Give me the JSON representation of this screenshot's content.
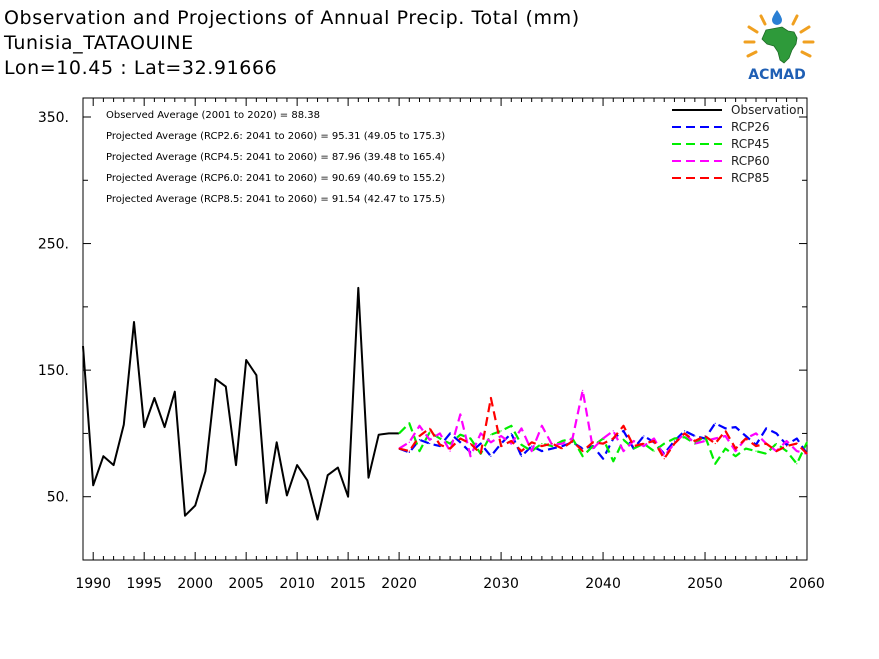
{
  "title": {
    "line1": "Observation and Projections of Annual Precip. Total (mm)",
    "line2": "Tunisia_TATAOUINE",
    "line3": "Lon=10.45 : Lat=32.91666"
  },
  "logo": {
    "text": "ACMAD",
    "color": "#1f5fb4"
  },
  "chart_data": {
    "type": "line",
    "xlim": [
      1989,
      2060
    ],
    "ylim": [
      0,
      365
    ],
    "grid": false,
    "legend_position": "top-right",
    "x_ticks": [
      {
        "v": 1990,
        "label": "1990"
      },
      {
        "v": 1995,
        "label": "1995"
      },
      {
        "v": 2000,
        "label": "2000"
      },
      {
        "v": 2005,
        "label": "2005"
      },
      {
        "v": 2010,
        "label": "2010"
      },
      {
        "v": 2015,
        "label": "2015"
      },
      {
        "v": 2020,
        "label": "2020"
      },
      {
        "v": 2030,
        "label": "2030"
      },
      {
        "v": 2040,
        "label": "2040"
      },
      {
        "v": 2050,
        "label": "2050"
      },
      {
        "v": 2060,
        "label": "2060"
      }
    ],
    "y_ticks": [
      {
        "v": 50,
        "label": "50."
      },
      {
        "v": 150,
        "label": "150."
      },
      {
        "v": 250,
        "label": "250."
      },
      {
        "v": 350,
        "label": "350."
      }
    ],
    "stats": [
      "Observed Average (2001 to 2020) = 88.38",
      "Projected Average (RCP2.6: 2041 to 2060) = 95.31 (49.05 to 175.3)",
      "Projected Average (RCP4.5: 2041 to 2060) = 87.96 (39.48 to 165.4)",
      "Projected Average (RCP6.0: 2041 to 2060) = 90.69 (40.69 to 155.2)",
      "Projected Average (RCP8.5: 2041 to 2060) = 91.54 (42.47 to 175.5)"
    ],
    "series": [
      {
        "name": "Observation",
        "color": "#000000",
        "dashed": false,
        "x": [
          1989,
          1990,
          1991,
          1992,
          1993,
          1994,
          1995,
          1996,
          1997,
          1998,
          1999,
          2000,
          2001,
          2002,
          2003,
          2004,
          2005,
          2006,
          2007,
          2008,
          2009,
          2010,
          2011,
          2012,
          2013,
          2014,
          2015,
          2016,
          2017,
          2018,
          2019,
          2020
        ],
        "y": [
          169,
          59,
          82,
          75,
          107,
          188,
          105,
          128,
          105,
          133,
          35,
          43,
          70,
          143,
          137,
          75,
          158,
          146,
          45,
          93,
          51,
          75,
          63,
          32,
          67,
          73,
          50,
          215,
          65,
          99,
          100,
          100
        ]
      },
      {
        "name": "RCP26",
        "color": "#0000ff",
        "dashed": true,
        "x": [
          2020,
          2021,
          2022,
          2023,
          2024,
          2025,
          2026,
          2027,
          2028,
          2029,
          2030,
          2031,
          2032,
          2033,
          2034,
          2035,
          2036,
          2037,
          2038,
          2039,
          2040,
          2041,
          2042,
          2043,
          2044,
          2045,
          2046,
          2047,
          2048,
          2049,
          2050,
          2051,
          2052,
          2053,
          2054,
          2055,
          2056,
          2057,
          2058,
          2059,
          2060
        ],
        "y": [
          88,
          85,
          95,
          92,
          90,
          100,
          93,
          85,
          92,
          82,
          92,
          100,
          82,
          90,
          86,
          88,
          90,
          93,
          88,
          90,
          80,
          96,
          102,
          88,
          98,
          93,
          84,
          94,
          102,
          98,
          96,
          108,
          104,
          105,
          98,
          91,
          104,
          100,
          91,
          96,
          84
        ]
      },
      {
        "name": "RCP45",
        "color": "#00ee00",
        "dashed": true,
        "x": [
          2020,
          2021,
          2022,
          2023,
          2024,
          2025,
          2026,
          2027,
          2028,
          2029,
          2030,
          2031,
          2032,
          2033,
          2034,
          2035,
          2036,
          2037,
          2038,
          2039,
          2040,
          2041,
          2042,
          2043,
          2044,
          2045,
          2046,
          2047,
          2048,
          2049,
          2050,
          2051,
          2052,
          2053,
          2054,
          2055,
          2056,
          2057,
          2058,
          2059,
          2060
        ],
        "y": [
          100,
          108,
          86,
          101,
          96,
          92,
          99,
          96,
          84,
          99,
          102,
          106,
          91,
          86,
          92,
          90,
          94,
          96,
          82,
          90,
          96,
          78,
          95,
          88,
          92,
          86,
          92,
          96,
          97,
          92,
          98,
          76,
          88,
          82,
          88,
          86,
          84,
          92,
          86,
          76,
          93
        ]
      },
      {
        "name": "RCP60",
        "color": "#ff00ff",
        "dashed": true,
        "x": [
          2020,
          2021,
          2022,
          2023,
          2024,
          2025,
          2026,
          2027,
          2028,
          2029,
          2030,
          2031,
          2032,
          2033,
          2034,
          2035,
          2036,
          2037,
          2038,
          2039,
          2040,
          2041,
          2042,
          2043,
          2044,
          2045,
          2046,
          2047,
          2048,
          2049,
          2050,
          2051,
          2052,
          2053,
          2054,
          2055,
          2056,
          2057,
          2058,
          2059,
          2060
        ],
        "y": [
          88,
          93,
          106,
          95,
          100,
          86,
          115,
          82,
          100,
          93,
          98,
          92,
          104,
          86,
          106,
          91,
          92,
          96,
          134,
          88,
          96,
          102,
          86,
          94,
          90,
          96,
          82,
          92,
          100,
          92,
          94,
          96,
          98,
          86,
          96,
          100,
          92,
          86,
          94,
          86,
          84
        ]
      },
      {
        "name": "RCP85",
        "color": "#ff0000",
        "dashed": true,
        "x": [
          2020,
          2021,
          2022,
          2023,
          2024,
          2025,
          2026,
          2027,
          2028,
          2029,
          2030,
          2031,
          2032,
          2033,
          2034,
          2035,
          2036,
          2037,
          2038,
          2039,
          2040,
          2041,
          2042,
          2043,
          2044,
          2045,
          2046,
          2047,
          2048,
          2049,
          2050,
          2051,
          2052,
          2053,
          2054,
          2055,
          2056,
          2057,
          2058,
          2059,
          2060
        ],
        "y": [
          88,
          86,
          98,
          104,
          91,
          88,
          96,
          92,
          84,
          128,
          90,
          94,
          86,
          93,
          90,
          92,
          88,
          94,
          86,
          93,
          92,
          96,
          106,
          90,
          92,
          94,
          80,
          92,
          100,
          94,
          98,
          92,
          102,
          88,
          96,
          90,
          92,
          86,
          90,
          92,
          84
        ]
      }
    ]
  }
}
